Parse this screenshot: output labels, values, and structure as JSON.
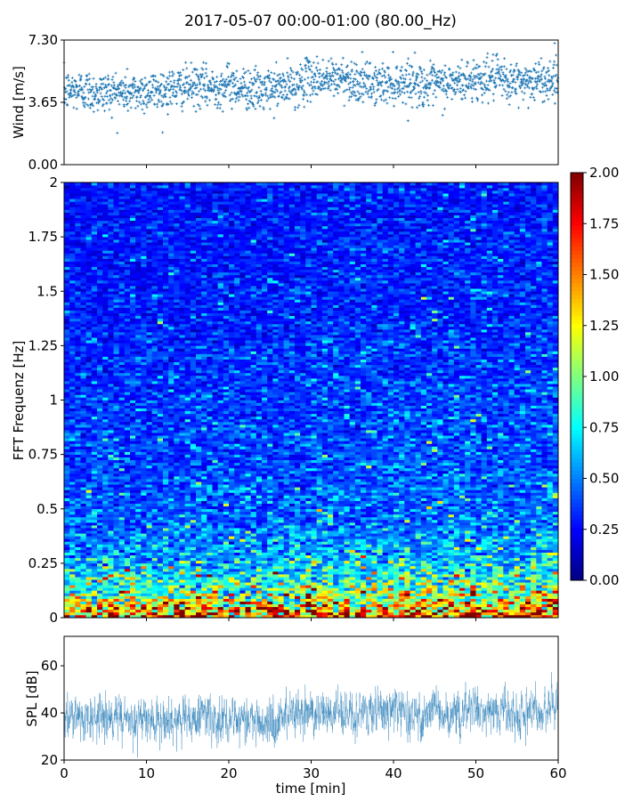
{
  "chart_data": [
    {
      "type": "scatter",
      "title": "2017-05-07 00:00-01:00 (80.00_Hz)",
      "ylabel": "Wind [m/s]",
      "xlim": [
        0,
        60
      ],
      "ylim": [
        0,
        7.3
      ],
      "yticks": [
        "0.00",
        "3.65",
        "7.30"
      ],
      "color": "#1f77b4",
      "marker": "+",
      "x_minutes": [
        0,
        2,
        4,
        6,
        8,
        10,
        12,
        14,
        16,
        18,
        20,
        22,
        24,
        26,
        28,
        30,
        32,
        34,
        36,
        38,
        40,
        42,
        44,
        46,
        48,
        50,
        52,
        54,
        56,
        58,
        60
      ],
      "mean_wind": [
        4.3,
        4.4,
        4.2,
        4.3,
        4.2,
        4.3,
        4.4,
        4.5,
        4.6,
        4.5,
        4.7,
        4.5,
        4.3,
        4.5,
        4.6,
        5.1,
        5.0,
        5.1,
        4.8,
        4.7,
        4.8,
        4.9,
        4.6,
        4.7,
        4.8,
        5.0,
        5.1,
        4.8,
        4.9,
        4.9,
        5.1
      ],
      "spread_std": 0.6
    },
    {
      "type": "heatmap",
      "ylabel": "FFT Frequenz [Hz]",
      "xlim": [
        0,
        60
      ],
      "ylim": [
        0,
        2
      ],
      "yticks": [
        "0",
        "0.25",
        "0.5",
        "0.75",
        "1",
        "1.25",
        "1.5",
        "1.75",
        "2"
      ],
      "colormap": "jet",
      "colorbar": {
        "range": [
          0,
          2
        ],
        "ticks": [
          "0.00",
          "0.25",
          "0.50",
          "0.75",
          "1.00",
          "1.25",
          "1.50",
          "1.75",
          "2.00"
        ]
      },
      "frequency_hz": [
        0,
        0.05,
        0.1,
        0.15,
        0.2,
        0.25,
        0.3,
        0.4,
        0.5,
        0.75,
        1,
        1.25,
        1.5,
        1.75,
        2
      ],
      "mean_amplitude": [
        1.6,
        1.3,
        1.0,
        0.85,
        0.72,
        0.62,
        0.55,
        0.47,
        0.42,
        0.38,
        0.35,
        0.32,
        0.3,
        0.28,
        0.27
      ]
    },
    {
      "type": "line",
      "xlabel": "time [min]",
      "ylabel": "SPL [dB]",
      "xlim": [
        0,
        60
      ],
      "ylim": [
        20,
        72.5
      ],
      "xticks": [
        "0",
        "10",
        "20",
        "30",
        "40",
        "50",
        "60"
      ],
      "yticks": [
        "20",
        "40",
        "60"
      ],
      "color": "#1f77b4",
      "x_minutes": [
        0,
        5,
        10,
        15,
        20,
        25,
        30,
        35,
        40,
        45,
        50,
        55,
        60
      ],
      "mean_spl": [
        37,
        37,
        37,
        37,
        38,
        37,
        40,
        40,
        40,
        40,
        41,
        40,
        42
      ]
    }
  ]
}
